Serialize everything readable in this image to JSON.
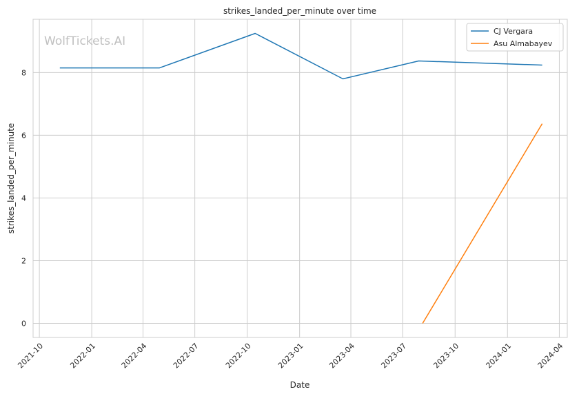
{
  "chart_data": {
    "type": "line",
    "title": "strikes_landed_per_minute over time",
    "xlabel": "Date",
    "ylabel": "strikes_landed_per_minute",
    "watermark": "WolfTickets.AI",
    "x_ticks": [
      "2021-10",
      "2022-01",
      "2022-04",
      "2022-07",
      "2022-10",
      "2023-01",
      "2023-04",
      "2023-07",
      "2023-10",
      "2024-01",
      "2024-04"
    ],
    "y_ticks": [
      "0",
      "2",
      "4",
      "6",
      "8"
    ],
    "xlim": [
      "2021-09-20",
      "2024-04-15"
    ],
    "ylim": [
      -0.45,
      9.7
    ],
    "grid": true,
    "legend_position": "top-right",
    "series": [
      {
        "name": "CJ Vergara",
        "color": "#1f77b4",
        "x": [
          "2021-11-06",
          "2022-04-30",
          "2022-10-15",
          "2023-03-18",
          "2023-07-29",
          "2024-03-02"
        ],
        "y": [
          8.15,
          8.15,
          9.25,
          7.8,
          8.37,
          8.24
        ]
      },
      {
        "name": "Asu Almabayev",
        "color": "#ff7f0e",
        "x": [
          "2023-08-05",
          "2024-03-02"
        ],
        "y": [
          0.0,
          6.37
        ]
      }
    ]
  }
}
